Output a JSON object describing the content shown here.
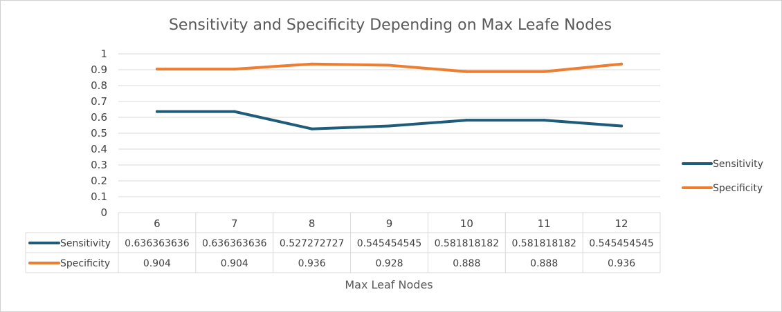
{
  "chart_data": {
    "type": "line",
    "title": "Sensitivity and Specificity Depending on Max Leafe Nodes",
    "xlabel": "Max Leaf Nodes",
    "ylabel": "",
    "ylim": [
      0,
      1
    ],
    "yticks": [
      "0",
      "0.1",
      "0.2",
      "0.3",
      "0.4",
      "0.5",
      "0.6",
      "0.7",
      "0.8",
      "0.9",
      "1"
    ],
    "categories": [
      "6",
      "7",
      "8",
      "9",
      "10",
      "11",
      "12"
    ],
    "grid": true,
    "legend_position": "right",
    "data_table": true,
    "series": [
      {
        "name": "Sensitivity",
        "color": "#1f5c7a",
        "values": [
          0.636363636,
          0.636363636,
          0.527272727,
          0.545454545,
          0.581818182,
          0.581818182,
          0.545454545
        ],
        "labels": [
          "0.636363636",
          "0.636363636",
          "0.527272727",
          "0.545454545",
          "0.581818182",
          "0.581818182",
          "0.545454545"
        ]
      },
      {
        "name": "Specificity",
        "color": "#ed7d31",
        "values": [
          0.904,
          0.904,
          0.936,
          0.928,
          0.888,
          0.888,
          0.936
        ],
        "labels": [
          "0.904",
          "0.904",
          "0.936",
          "0.928",
          "0.888",
          "0.888",
          "0.936"
        ]
      }
    ]
  }
}
